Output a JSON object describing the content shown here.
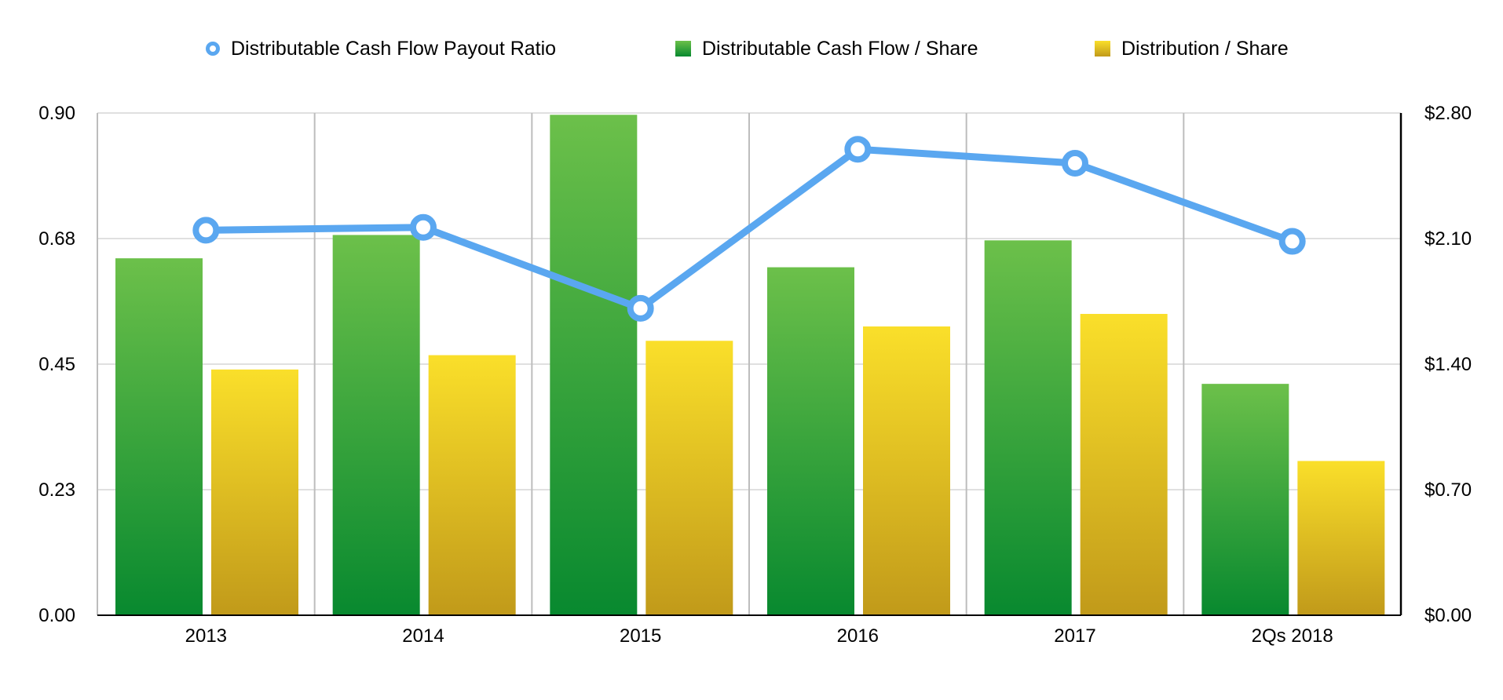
{
  "chart_data": {
    "type": "bar",
    "categories": [
      "2013",
      "2014",
      "2015",
      "2016",
      "2017",
      "2Qs 2018"
    ],
    "series": [
      {
        "name": "Distributable Cash Flow / Share",
        "kind": "bar",
        "axis": "right",
        "color_top": "#6cc04a",
        "color_bottom": "#08892f",
        "values": [
          1.99,
          2.12,
          2.79,
          1.94,
          2.09,
          1.29
        ]
      },
      {
        "name": "Distribution / Share",
        "kind": "bar",
        "axis": "right",
        "color_top": "#fadf2a",
        "color_bottom": "#c19a1a",
        "values": [
          1.37,
          1.45,
          1.53,
          1.61,
          1.68,
          0.86
        ]
      },
      {
        "name": "Distributable Cash Flow Payout Ratio",
        "kind": "line",
        "axis": "left",
        "color": "#5aa7f0",
        "values": [
          0.69,
          0.695,
          0.55,
          0.835,
          0.81,
          0.67
        ]
      }
    ],
    "left_axis": {
      "ylim": [
        0,
        0.9
      ],
      "ticks": [
        "0.00",
        "0.23",
        "0.45",
        "0.68",
        "0.90"
      ]
    },
    "right_axis": {
      "ylim": [
        0,
        2.8
      ],
      "ticks": [
        "$0.00",
        "$0.70",
        "$1.40",
        "$2.10",
        "$2.80"
      ]
    },
    "legend": {
      "position": "top",
      "items": [
        "Distributable Cash Flow Payout Ratio",
        "Distributable Cash Flow / Share",
        "Distribution / Share"
      ]
    },
    "grid": true
  }
}
